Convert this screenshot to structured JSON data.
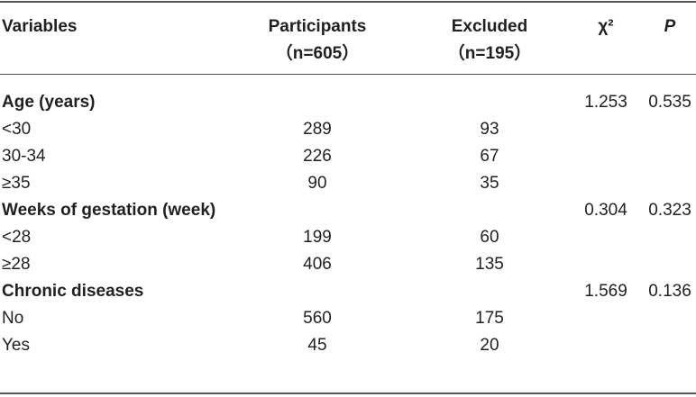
{
  "table": {
    "header": {
      "variables": "Variables",
      "participants": "Participants",
      "participants_n": "（n=605）",
      "excluded": "Excluded",
      "excluded_n": "（n=195）",
      "chi2": "χ²",
      "p": "P"
    },
    "rows": [
      {
        "label": "Age (years)",
        "heading": true,
        "chi2": 1.253,
        "p": 0.535
      },
      {
        "label": "<30",
        "participants": 289,
        "excluded": 93
      },
      {
        "label": "30-34",
        "participants": 226,
        "excluded": 67
      },
      {
        "label": "≥35",
        "participants": 90,
        "excluded": 35
      },
      {
        "label": "Weeks of gestation (week)",
        "heading": true,
        "chi2": 0.304,
        "p": 0.323
      },
      {
        "label": "<28",
        "participants": 199,
        "excluded": 60
      },
      {
        "label": "≥28",
        "participants": 406,
        "excluded": 135
      },
      {
        "label": "Chronic diseases",
        "heading": true,
        "chi2": 1.569,
        "p": 0.136
      },
      {
        "label": "No",
        "participants": 560,
        "excluded": 175
      },
      {
        "label": "Yes",
        "participants": 45,
        "excluded": 20
      }
    ]
  }
}
